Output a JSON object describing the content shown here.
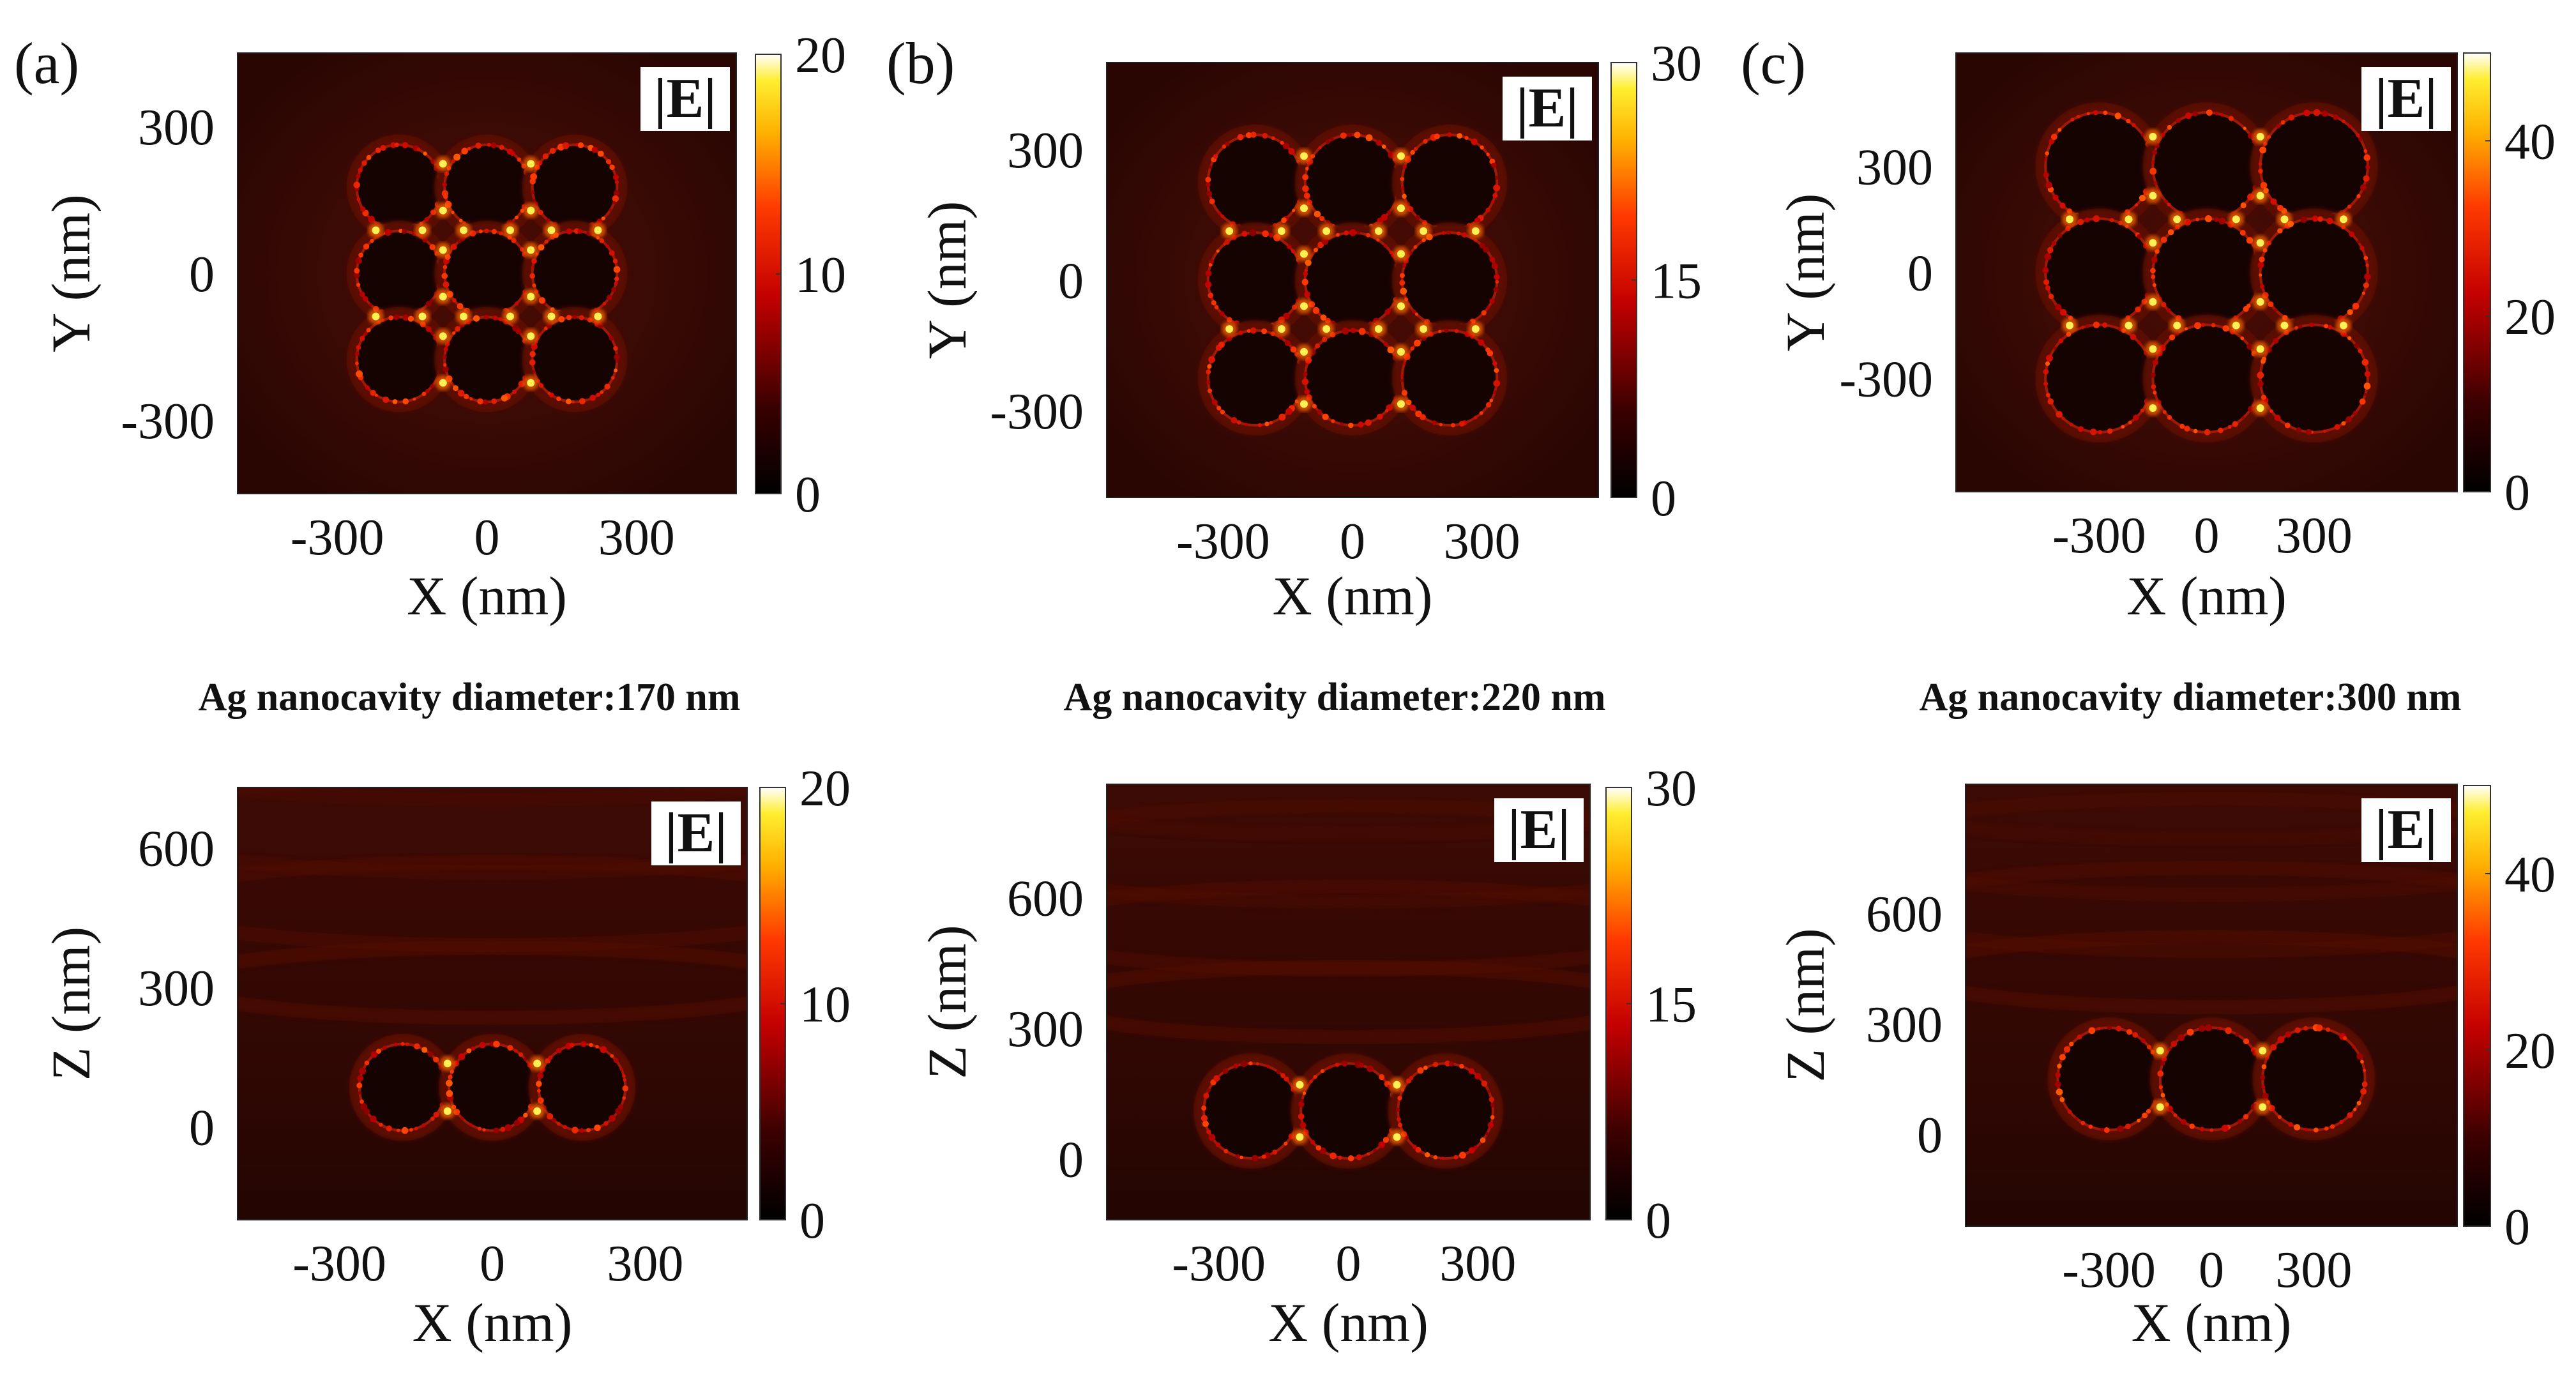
{
  "figure": {
    "panel_labels": [
      "(a)",
      "(b)",
      "(c)"
    ],
    "captions": [
      "Ag nanocavity diameter:170 nm",
      "Ag nanocavity diameter:220 nm",
      "Ag nanocavity diameter:300 nm"
    ]
  },
  "chart_data": [
    {
      "type": "heatmap",
      "panel": "(a)",
      "view": "XY",
      "quantity": "|E|",
      "diameter_nm": 170,
      "pitch_nm": 176,
      "array": "3x3",
      "xlabel": "X (nm)",
      "ylabel": "Y (nm)",
      "xticks": [
        -300,
        0,
        300
      ],
      "yticks": [
        300,
        0,
        -300
      ],
      "xlim": [
        -500,
        500
      ],
      "ylim": [
        -450,
        450
      ],
      "colorbar": {
        "min": 0,
        "max": 20,
        "ticks": [
          20,
          10,
          0
        ]
      },
      "badge": "|E|"
    },
    {
      "type": "heatmap",
      "panel": "(b)",
      "view": "XY",
      "quantity": "|E|",
      "diameter_nm": 220,
      "pitch_nm": 225,
      "array": "3x3",
      "xlabel": "X (nm)",
      "ylabel": "Y (nm)",
      "xticks": [
        -300,
        0,
        300
      ],
      "yticks": [
        300,
        0,
        -300
      ],
      "xlim": [
        -570,
        570
      ],
      "ylim": [
        -500,
        500
      ],
      "colorbar": {
        "min": 0,
        "max": 30,
        "ticks": [
          30,
          15,
          0
        ]
      },
      "badge": "|E|"
    },
    {
      "type": "heatmap",
      "panel": "(c)",
      "view": "XY",
      "quantity": "|E|",
      "diameter_nm": 300,
      "pitch_nm": 300,
      "array": "3x3",
      "xlabel": "X (nm)",
      "ylabel": "Y (nm)",
      "xticks": [
        -300,
        0,
        300
      ],
      "yticks": [
        300,
        0,
        -300
      ],
      "xlim": [
        -700,
        700
      ],
      "ylim": [
        -620,
        620
      ],
      "colorbar": {
        "min": 0,
        "max": 50,
        "ticks": [
          40,
          20,
          0
        ]
      },
      "badge": "|E|"
    },
    {
      "type": "heatmap",
      "panel": "(a)",
      "view": "XZ",
      "quantity": "|E|",
      "diameter_nm": 170,
      "pitch_nm": 176,
      "center_z_nm": 85,
      "xlabel": "X (nm)",
      "ylabel": "Z (nm)",
      "xticks": [
        -300,
        0,
        300
      ],
      "yticks": [
        600,
        300,
        0
      ],
      "xlim": [
        -500,
        500
      ],
      "ylim": [
        -200,
        730
      ],
      "colorbar": {
        "min": 0,
        "max": 20,
        "ticks": [
          20,
          10,
          0
        ]
      },
      "badge": "|E|"
    },
    {
      "type": "heatmap",
      "panel": "(b)",
      "view": "XZ",
      "quantity": "|E|",
      "diameter_nm": 220,
      "pitch_nm": 225,
      "center_z_nm": 110,
      "xlabel": "X (nm)",
      "ylabel": "Z (nm)",
      "xticks": [
        -300,
        0,
        300
      ],
      "yticks": [
        600,
        300,
        0
      ],
      "xlim": [
        -560,
        560
      ],
      "ylim": [
        -140,
        860
      ],
      "colorbar": {
        "min": 0,
        "max": 30,
        "ticks": [
          30,
          15,
          0
        ]
      },
      "badge": "|E|"
    },
    {
      "type": "heatmap",
      "panel": "(c)",
      "view": "XZ",
      "quantity": "|E|",
      "diameter_nm": 300,
      "pitch_nm": 300,
      "center_z_nm": 150,
      "xlabel": "X (nm)",
      "ylabel": "Z (nm)",
      "xticks": [
        -300,
        0,
        300
      ],
      "yticks": [
        600,
        300,
        0
      ],
      "xlim": [
        -720,
        720
      ],
      "ylim": [
        -250,
        950
      ],
      "colorbar": {
        "min": 0,
        "max": 50,
        "ticks": [
          40,
          20,
          0
        ]
      },
      "badge": "|E|"
    }
  ]
}
